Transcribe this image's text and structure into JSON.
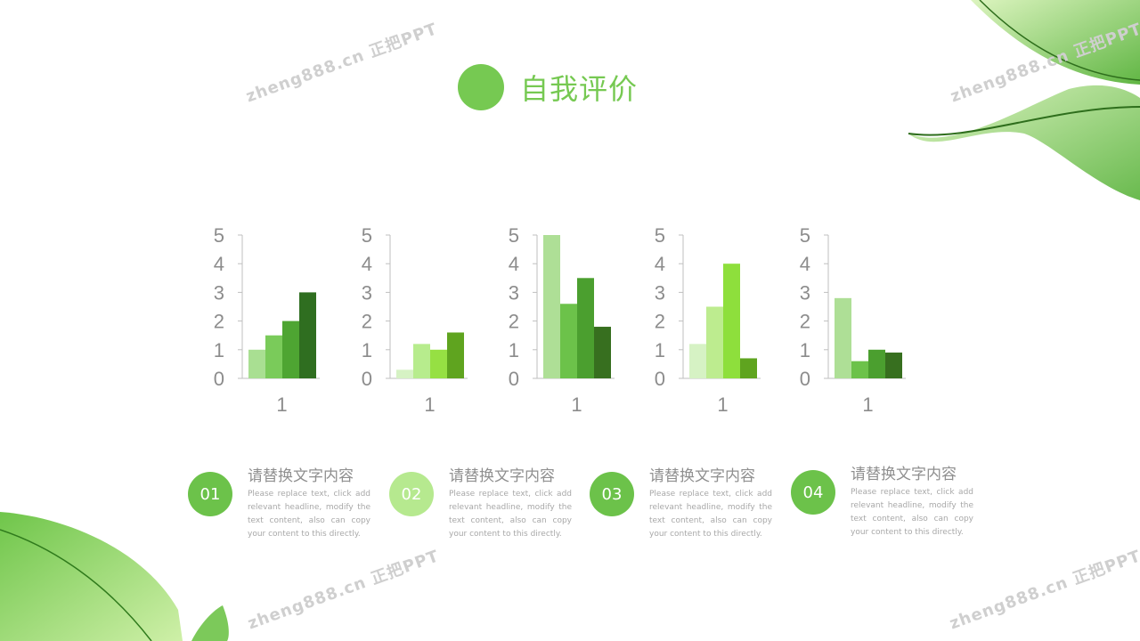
{
  "title": "自我评价",
  "watermarks": [
    "zheng888.cn 正把PPT",
    "zheng888.cn 正把PPT",
    "zheng888.cn 正把PPT",
    "zheng888.cn 正把PPT"
  ],
  "chart_data": [
    {
      "type": "bar",
      "categories": [
        "1"
      ],
      "ylim": [
        0,
        5
      ],
      "yticks": [
        "0",
        "1",
        "2",
        "3",
        "4",
        "5"
      ],
      "series": [
        {
          "values": [
            1.0
          ],
          "color": "#a9df92"
        },
        {
          "values": [
            1.5
          ],
          "color": "#7acb5a"
        },
        {
          "values": [
            2.0
          ],
          "color": "#4ea532"
        },
        {
          "values": [
            3.0
          ],
          "color": "#2f6e20"
        }
      ]
    },
    {
      "type": "bar",
      "categories": [
        "1"
      ],
      "ylim": [
        0,
        5
      ],
      "yticks": [
        "0",
        "1",
        "2",
        "3",
        "4",
        "5"
      ],
      "series": [
        {
          "values": [
            0.3
          ],
          "color": "#d6f2c4"
        },
        {
          "values": [
            1.2
          ],
          "color": "#b7ec8d"
        },
        {
          "values": [
            1.0
          ],
          "color": "#96e043"
        },
        {
          "values": [
            1.6
          ],
          "color": "#5fa41f"
        }
      ]
    },
    {
      "type": "bar",
      "categories": [
        "1"
      ],
      "ylim": [
        0,
        5
      ],
      "yticks": [
        "0",
        "1",
        "2",
        "3",
        "4",
        "5"
      ],
      "series": [
        {
          "values": [
            5.0
          ],
          "color": "#aedf96"
        },
        {
          "values": [
            2.6
          ],
          "color": "#6cc24a"
        },
        {
          "values": [
            3.5
          ],
          "color": "#4b9f2f"
        },
        {
          "values": [
            1.8
          ],
          "color": "#376f1f"
        }
      ]
    },
    {
      "type": "bar",
      "categories": [
        "1"
      ],
      "ylim": [
        0,
        5
      ],
      "yticks": [
        "0",
        "1",
        "2",
        "3",
        "4",
        "5"
      ],
      "series": [
        {
          "values": [
            1.2
          ],
          "color": "#d6f2c4"
        },
        {
          "values": [
            2.5
          ],
          "color": "#bdec8f"
        },
        {
          "values": [
            4.0
          ],
          "color": "#8edf3c"
        },
        {
          "values": [
            0.7
          ],
          "color": "#5fa41f"
        }
      ]
    },
    {
      "type": "bar",
      "categories": [
        "1"
      ],
      "ylim": [
        0,
        5
      ],
      "yticks": [
        "0",
        "1",
        "2",
        "3",
        "4",
        "5"
      ],
      "series": [
        {
          "values": [
            2.8
          ],
          "color": "#aedf96"
        },
        {
          "values": [
            0.6
          ],
          "color": "#6cc24a"
        },
        {
          "values": [
            1.0
          ],
          "color": "#4b9f2f"
        },
        {
          "values": [
            0.9
          ],
          "color": "#376f1f"
        }
      ]
    }
  ],
  "items": [
    {
      "number": "01",
      "badge_color": "#6cc24a",
      "title": "请替换文字内容",
      "body": "Please replace text, click add relevant headline, modify the text content, also can copy your content to this directly."
    },
    {
      "number": "02",
      "badge_color": "#b6e98f",
      "title": "请替换文字内容",
      "body": "Please replace text, click add relevant headline, modify the text content, also can copy your content to this directly."
    },
    {
      "number": "03",
      "badge_color": "#6cc24a",
      "title": "请替换文字内容",
      "body": "Please replace text, click add relevant headline, modify the text content, also can copy your content to this directly."
    },
    {
      "number": "04",
      "badge_color": "#6cc24a",
      "title": "请替换文字内容",
      "body": "Please replace text, click add relevant headline, modify the text content, also can copy your content to this directly."
    }
  ]
}
